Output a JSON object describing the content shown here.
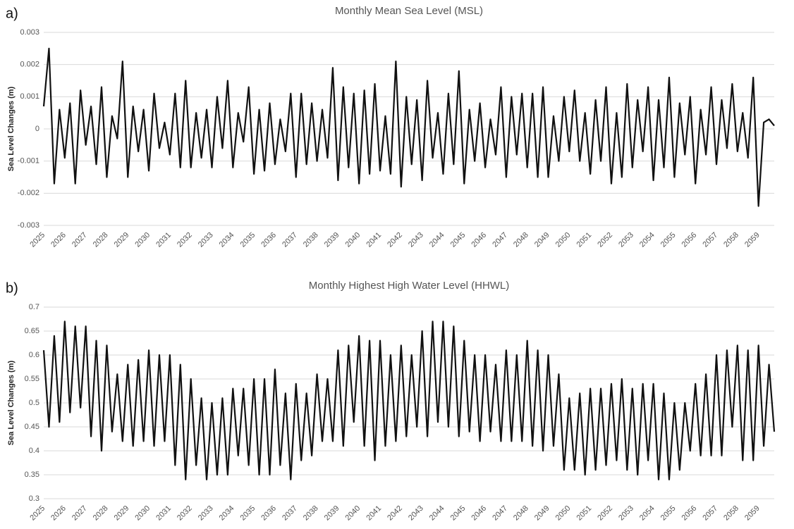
{
  "chart_data": [
    {
      "type": "line",
      "panel": "a)",
      "title": "Monthly Mean Sea Level (MSL)",
      "y_label": "Sea Level Changes (m)",
      "categories": [
        "2025",
        null,
        null,
        null,
        "2026",
        null,
        null,
        null,
        "2027",
        null,
        null,
        null,
        "2028",
        null,
        null,
        null,
        "2029",
        null,
        null,
        null,
        "2030",
        null,
        null,
        null,
        "2031",
        null,
        null,
        null,
        "2032",
        null,
        null,
        null,
        "2033",
        null,
        null,
        null,
        "2034",
        null,
        null,
        null,
        "2035",
        null,
        null,
        null,
        "2036",
        null,
        null,
        null,
        "2037",
        null,
        null,
        null,
        "2038",
        null,
        null,
        null,
        "2039",
        null,
        null,
        null,
        "2040",
        null,
        null,
        null,
        "2041",
        null,
        null,
        null,
        "2042",
        null,
        null,
        null,
        "2043",
        null,
        null,
        null,
        "2044",
        null,
        null,
        null,
        "2045",
        null,
        null,
        null,
        "2046",
        null,
        null,
        null,
        "2047",
        null,
        null,
        null,
        "2048",
        null,
        null,
        null,
        "2049",
        null,
        null,
        null,
        "2050",
        null,
        null,
        null,
        "2051",
        null,
        null,
        null,
        "2052",
        null,
        null,
        null,
        "2053",
        null,
        null,
        null,
        "2054",
        null,
        null,
        null,
        "2055",
        null,
        null,
        null,
        "2056",
        null,
        null,
        null,
        "2057",
        null,
        null,
        null,
        "2058",
        null,
        null,
        null,
        "2059",
        null,
        null,
        null
      ],
      "series": [
        {
          "color": "#111111",
          "values": [
            0.0007,
            0.0025,
            -0.0017,
            0.0006,
            -0.0009,
            0.0008,
            -0.0017,
            0.0012,
            -0.0005,
            0.0007,
            -0.0011,
            0.0013,
            -0.0015,
            0.0004,
            -0.0003,
            0.0021,
            -0.0015,
            0.0007,
            -0.0007,
            0.0006,
            -0.0013,
            0.0011,
            -0.0006,
            0.0002,
            -0.0008,
            0.0011,
            -0.0012,
            0.0015,
            -0.0012,
            0.0005,
            -0.0009,
            0.0006,
            -0.0012,
            0.001,
            -0.0006,
            0.0015,
            -0.0012,
            0.0005,
            -0.0004,
            0.0013,
            -0.0014,
            0.0006,
            -0.0013,
            0.0008,
            -0.0011,
            0.0003,
            -0.0007,
            0.0011,
            -0.0015,
            0.0011,
            -0.0011,
            0.0008,
            -0.001,
            0.0006,
            -0.0009,
            0.0019,
            -0.0016,
            0.0013,
            -0.0012,
            0.0011,
            -0.0017,
            0.0012,
            -0.0014,
            0.0014,
            -0.0013,
            0.0004,
            -0.0014,
            0.0021,
            -0.0018,
            0.001,
            -0.0011,
            0.0009,
            -0.0016,
            0.0015,
            -0.0009,
            0.0005,
            -0.0014,
            0.0011,
            -0.0011,
            0.0018,
            -0.0017,
            0.0006,
            -0.001,
            0.0008,
            -0.0012,
            0.0003,
            -0.0008,
            0.0013,
            -0.0015,
            0.001,
            -0.0008,
            0.0011,
            -0.0012,
            0.0011,
            -0.0015,
            0.0013,
            -0.0015,
            0.0004,
            -0.001,
            0.001,
            -0.0007,
            0.0012,
            -0.001,
            0.0005,
            -0.0014,
            0.0009,
            -0.001,
            0.0013,
            -0.0017,
            0.0005,
            -0.0015,
            0.0014,
            -0.0012,
            0.0009,
            -0.0007,
            0.0013,
            -0.0016,
            0.0009,
            -0.0012,
            0.0016,
            -0.0015,
            0.0008,
            -0.0008,
            0.001,
            -0.0017,
            0.0006,
            -0.0008,
            0.0013,
            -0.0011,
            0.0009,
            -0.0006,
            0.0014,
            -0.0007,
            0.0005,
            -0.0009,
            0.0016,
            -0.0024,
            0.0002,
            0.0003,
            0.0001
          ]
        }
      ],
      "ylim": [
        -0.003,
        0.003
      ],
      "yticks": [
        -0.003,
        -0.002,
        -0.001,
        0,
        0.001,
        0.002,
        0.003
      ],
      "grid": true
    },
    {
      "type": "line",
      "panel": "b)",
      "title": "Monthly Highest High Water Level (HHWL)",
      "y_label": "Sea Level Changes (m)",
      "categories": [
        "2025",
        null,
        null,
        null,
        "2026",
        null,
        null,
        null,
        "2027",
        null,
        null,
        null,
        "2028",
        null,
        null,
        null,
        "2029",
        null,
        null,
        null,
        "2030",
        null,
        null,
        null,
        "2031",
        null,
        null,
        null,
        "2032",
        null,
        null,
        null,
        "2033",
        null,
        null,
        null,
        "2034",
        null,
        null,
        null,
        "2035",
        null,
        null,
        null,
        "2036",
        null,
        null,
        null,
        "2037",
        null,
        null,
        null,
        "2038",
        null,
        null,
        null,
        "2039",
        null,
        null,
        null,
        "2040",
        null,
        null,
        null,
        "2041",
        null,
        null,
        null,
        "2042",
        null,
        null,
        null,
        "2043",
        null,
        null,
        null,
        "2044",
        null,
        null,
        null,
        "2045",
        null,
        null,
        null,
        "2046",
        null,
        null,
        null,
        "2047",
        null,
        null,
        null,
        "2048",
        null,
        null,
        null,
        "2049",
        null,
        null,
        null,
        "2050",
        null,
        null,
        null,
        "2051",
        null,
        null,
        null,
        "2052",
        null,
        null,
        null,
        "2053",
        null,
        null,
        null,
        "2054",
        null,
        null,
        null,
        "2055",
        null,
        null,
        null,
        "2056",
        null,
        null,
        null,
        "2057",
        null,
        null,
        null,
        "2058",
        null,
        null,
        null,
        "2059",
        null,
        null,
        null
      ],
      "series": [
        {
          "color": "#111111",
          "values": [
            0.61,
            0.45,
            0.64,
            0.46,
            0.67,
            0.48,
            0.66,
            0.49,
            0.66,
            0.43,
            0.63,
            0.4,
            0.62,
            0.44,
            0.56,
            0.42,
            0.58,
            0.41,
            0.59,
            0.42,
            0.61,
            0.41,
            0.6,
            0.42,
            0.6,
            0.37,
            0.58,
            0.34,
            0.55,
            0.37,
            0.51,
            0.34,
            0.5,
            0.35,
            0.51,
            0.35,
            0.53,
            0.39,
            0.53,
            0.37,
            0.55,
            0.35,
            0.55,
            0.35,
            0.57,
            0.37,
            0.52,
            0.34,
            0.54,
            0.38,
            0.52,
            0.39,
            0.56,
            0.42,
            0.55,
            0.42,
            0.61,
            0.41,
            0.62,
            0.46,
            0.64,
            0.41,
            0.63,
            0.38,
            0.63,
            0.41,
            0.6,
            0.42,
            0.62,
            0.43,
            0.6,
            0.45,
            0.65,
            0.43,
            0.67,
            0.46,
            0.67,
            0.45,
            0.66,
            0.43,
            0.63,
            0.44,
            0.6,
            0.42,
            0.6,
            0.44,
            0.58,
            0.42,
            0.61,
            0.42,
            0.6,
            0.42,
            0.63,
            0.41,
            0.61,
            0.4,
            0.6,
            0.41,
            0.56,
            0.36,
            0.51,
            0.36,
            0.52,
            0.35,
            0.53,
            0.36,
            0.53,
            0.37,
            0.54,
            0.38,
            0.55,
            0.36,
            0.53,
            0.35,
            0.54,
            0.38,
            0.54,
            0.34,
            0.52,
            0.34,
            0.5,
            0.36,
            0.5,
            0.4,
            0.54,
            0.39,
            0.56,
            0.39,
            0.6,
            0.39,
            0.61,
            0.45,
            0.62,
            0.38,
            0.61,
            0.38,
            0.62,
            0.41,
            0.58,
            0.44
          ]
        }
      ],
      "ylim": [
        0.3,
        0.7
      ],
      "yticks": [
        0.3,
        0.35,
        0.4,
        0.45,
        0.5,
        0.55,
        0.6,
        0.65,
        0.7
      ],
      "grid": true
    }
  ]
}
